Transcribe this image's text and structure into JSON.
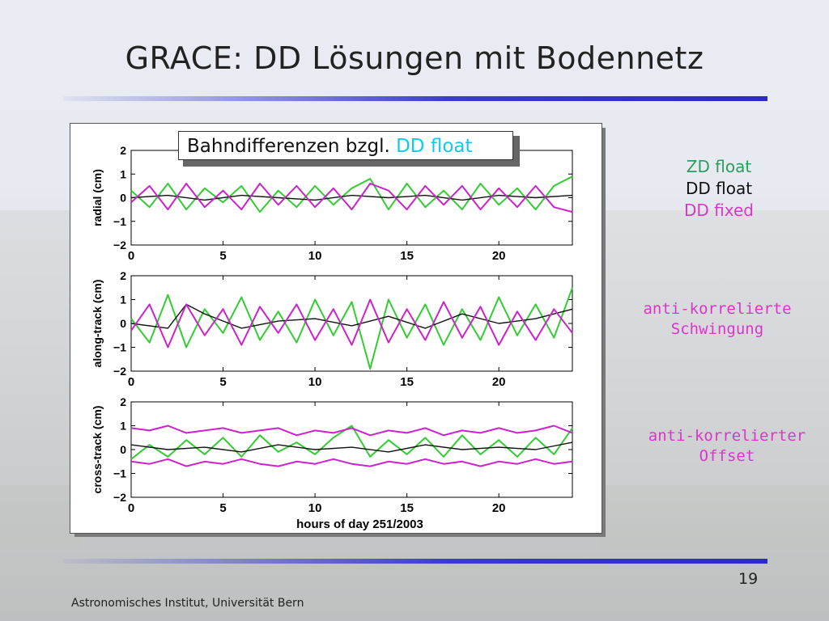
{
  "title": "GRACE: DD Lösungen mit Bodennetz",
  "legend_box": {
    "text_main": "Bahndifferenzen bzgl. ",
    "text_highlight": "DD float"
  },
  "side_legend": {
    "zd_float": "ZD float",
    "dd_float": "DD float",
    "dd_fixed": "DD fixed"
  },
  "notes": {
    "note1_line1": "anti-korrelierte",
    "note1_line2": "Schwingung",
    "note2_line1": "anti-korrelierter",
    "note2_line2": "Offset"
  },
  "page_number": "19",
  "footer": "Astronomisches Institut, Universität Bern",
  "colors": {
    "zd_float": "#33cc33",
    "dd_float": "#111111",
    "dd_fixed": "#cc22cc",
    "highlight": "#16c8e8",
    "rule": "#2a2ac8"
  },
  "chart_data": {
    "type": "line",
    "xlabel": "hours of day 251/2003",
    "xlim": [
      0,
      24
    ],
    "xticks": [
      0,
      5,
      10,
      15,
      20
    ],
    "ylim": [
      -2,
      2
    ],
    "yticks": [
      -2,
      -1,
      0,
      1,
      2
    ],
    "ytick_labels": [
      "−2",
      "−1",
      "0",
      "1",
      "2"
    ],
    "panels": [
      {
        "ylabel": "radial (cm)",
        "series": [
          {
            "name": "ZD float",
            "color": "#33cc33",
            "x": [
              0,
              1,
              2,
              3,
              4,
              5,
              6,
              7,
              8,
              9,
              10,
              11,
              12,
              13,
              14,
              15,
              16,
              17,
              18,
              19,
              20,
              21,
              22,
              23,
              24
            ],
            "values": [
              0.3,
              -0.4,
              0.6,
              -0.5,
              0.4,
              -0.2,
              0.5,
              -0.6,
              0.3,
              -0.4,
              0.5,
              -0.3,
              0.4,
              0.8,
              -0.5,
              0.6,
              -0.4,
              0.3,
              -0.5,
              0.6,
              -0.3,
              0.4,
              -0.5,
              0.5,
              0.9
            ]
          },
          {
            "name": "DD float",
            "color": "#111111",
            "x": [
              0,
              2,
              4,
              6,
              8,
              10,
              12,
              14,
              16,
              18,
              20,
              22,
              24
            ],
            "values": [
              0.0,
              0.1,
              -0.1,
              0.1,
              0.0,
              -0.1,
              0.1,
              0.0,
              0.1,
              -0.1,
              0.1,
              0.0,
              0.1
            ]
          },
          {
            "name": "DD fixed",
            "color": "#cc22cc",
            "x": [
              0,
              1,
              2,
              3,
              4,
              5,
              6,
              7,
              8,
              9,
              10,
              11,
              12,
              13,
              14,
              15,
              16,
              17,
              18,
              19,
              20,
              21,
              22,
              23,
              24
            ],
            "values": [
              -0.2,
              0.5,
              -0.5,
              0.6,
              -0.4,
              0.3,
              -0.5,
              0.6,
              -0.3,
              0.5,
              -0.4,
              0.4,
              -0.5,
              0.6,
              0.3,
              -0.5,
              0.5,
              -0.3,
              0.5,
              -0.5,
              0.4,
              -0.4,
              0.5,
              -0.4,
              -0.6
            ]
          }
        ]
      },
      {
        "ylabel": "along-track (cm)",
        "series": [
          {
            "name": "ZD float",
            "color": "#33cc33",
            "x": [
              0,
              1,
              2,
              3,
              4,
              5,
              6,
              7,
              8,
              9,
              10,
              11,
              12,
              13,
              14,
              15,
              16,
              17,
              18,
              19,
              20,
              21,
              22,
              23,
              24
            ],
            "values": [
              0.2,
              -0.8,
              1.2,
              -1.0,
              0.6,
              -0.4,
              1.1,
              -0.7,
              0.5,
              -0.8,
              1.0,
              -0.5,
              0.9,
              -1.9,
              1.0,
              -0.6,
              0.8,
              -0.9,
              0.6,
              -0.7,
              1.1,
              -0.5,
              0.8,
              -0.6,
              1.5
            ]
          },
          {
            "name": "DD float",
            "color": "#111111",
            "x": [
              0,
              2,
              3,
              4,
              6,
              8,
              10,
              12,
              14,
              16,
              18,
              20,
              22,
              24
            ],
            "values": [
              0.0,
              -0.2,
              0.8,
              0.4,
              -0.2,
              0.1,
              0.2,
              -0.1,
              0.3,
              -0.2,
              0.4,
              0.0,
              0.2,
              0.6
            ]
          },
          {
            "name": "DD fixed",
            "color": "#cc22cc",
            "x": [
              0,
              1,
              2,
              3,
              4,
              5,
              6,
              7,
              8,
              9,
              10,
              11,
              12,
              13,
              14,
              15,
              16,
              17,
              18,
              19,
              20,
              21,
              22,
              23,
              24
            ],
            "values": [
              -0.3,
              0.8,
              -1.0,
              0.8,
              -0.5,
              0.6,
              -0.9,
              0.7,
              -0.4,
              0.8,
              -0.7,
              0.6,
              -0.9,
              1.0,
              -0.8,
              0.6,
              -0.7,
              0.9,
              -0.6,
              0.7,
              -0.9,
              0.5,
              -0.7,
              0.6,
              -0.4
            ]
          }
        ]
      },
      {
        "ylabel": "cross-track (cm)",
        "series": [
          {
            "name": "ZD float",
            "color": "#33cc33",
            "x": [
              0,
              1,
              2,
              3,
              4,
              5,
              6,
              7,
              8,
              9,
              10,
              11,
              12,
              13,
              14,
              15,
              16,
              17,
              18,
              19,
              20,
              21,
              22,
              23,
              24
            ],
            "values": [
              -0.4,
              0.2,
              -0.3,
              0.4,
              -0.2,
              0.5,
              -0.3,
              0.6,
              -0.1,
              0.3,
              -0.2,
              0.5,
              1.0,
              -0.3,
              0.4,
              -0.2,
              0.5,
              -0.3,
              0.6,
              -0.2,
              0.4,
              -0.3,
              0.5,
              -0.2,
              0.9
            ]
          },
          {
            "name": "DD float",
            "color": "#111111",
            "x": [
              0,
              2,
              4,
              6,
              8,
              10,
              12,
              14,
              16,
              18,
              20,
              22,
              24
            ],
            "values": [
              0.2,
              0.0,
              0.1,
              -0.1,
              0.2,
              0.0,
              0.1,
              -0.1,
              0.2,
              0.0,
              0.1,
              0.0,
              0.3
            ]
          },
          {
            "name": "DD fixed",
            "color": "#cc22cc",
            "x": [
              0,
              1,
              2,
              3,
              4,
              5,
              6,
              7,
              8,
              9,
              10,
              11,
              12,
              13,
              14,
              15,
              16,
              17,
              18,
              19,
              20,
              21,
              22,
              23,
              24
            ],
            "values": [
              0.9,
              0.8,
              1.0,
              0.7,
              0.8,
              0.9,
              0.7,
              0.8,
              0.9,
              0.6,
              0.8,
              0.7,
              0.9,
              0.6,
              0.8,
              0.7,
              0.9,
              0.6,
              0.8,
              0.7,
              0.9,
              0.7,
              0.8,
              1.0,
              0.7
            ]
          },
          {
            "name": "DD fixed",
            "color": "#cc22cc",
            "x": [
              0,
              1,
              2,
              3,
              4,
              5,
              6,
              7,
              8,
              9,
              10,
              11,
              12,
              13,
              14,
              15,
              16,
              17,
              18,
              19,
              20,
              21,
              22,
              23,
              24
            ],
            "values": [
              -0.5,
              -0.6,
              -0.4,
              -0.7,
              -0.5,
              -0.6,
              -0.4,
              -0.6,
              -0.7,
              -0.5,
              -0.6,
              -0.4,
              -0.6,
              -0.7,
              -0.5,
              -0.6,
              -0.4,
              -0.6,
              -0.5,
              -0.7,
              -0.5,
              -0.6,
              -0.4,
              -0.6,
              -0.5
            ]
          }
        ]
      }
    ]
  }
}
